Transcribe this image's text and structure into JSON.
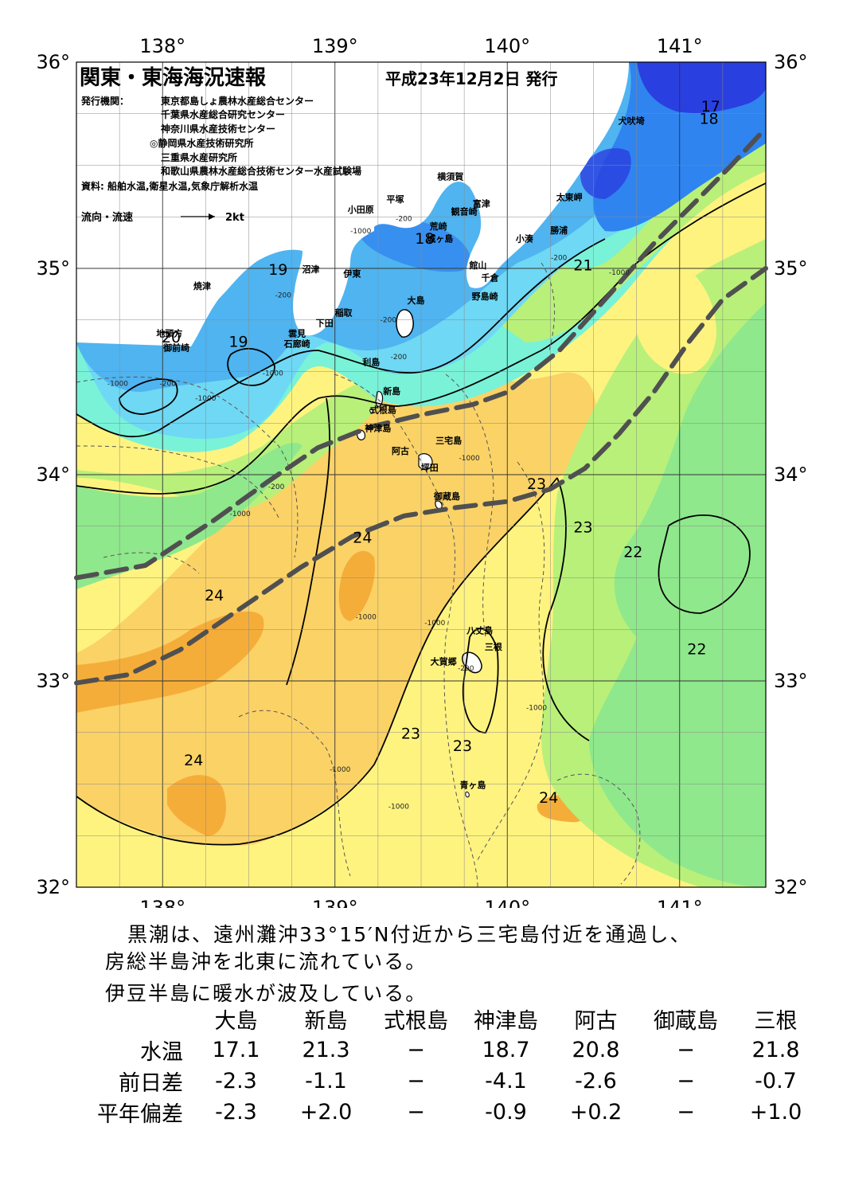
{
  "header": {
    "title": "関東・東海海況速報",
    "date": "平成23年12月2日 発行",
    "issuer_label": "発行機関：",
    "issuers": [
      "東京都島しょ農林水産総合センター",
      "千葉県水産総合研究センター",
      "神奈川県水産技術センター",
      "◎静岡県水産技術研究所",
      "三重県水産研究所",
      "和歌山県農林水産総合技術センター水産試験場"
    ],
    "source": "資料: 船舶水温,衛星水温,気象庁解析水温",
    "legend_label": "流向・流速",
    "legend_scale": "2kt"
  },
  "axes": {
    "lon_labels": [
      "138°",
      "139°",
      "140°",
      "141°"
    ],
    "lat_labels": [
      "36°",
      "35°",
      "34°",
      "33°",
      "32°"
    ],
    "lon_values": [
      138,
      139,
      140,
      141
    ],
    "lat_values": [
      36,
      35,
      34,
      33,
      32
    ],
    "lon_range": [
      137.5,
      141.5
    ],
    "lat_range": [
      32,
      36
    ]
  },
  "colors": {
    "t17": "#2a3fe0",
    "t18": "#2f84f0",
    "t19": "#4fb4f0",
    "t20": "#6fd8f4",
    "t21": "#79f2d8",
    "t22": "#8fe88c",
    "t22b": "#b8f07a",
    "t23": "#fff380",
    "t23b": "#fbd266",
    "t24": "#f5ad3a",
    "land": "#ffffff",
    "kuroshio": "#505050"
  },
  "place_names": [
    {
      "name": "犬吠埼",
      "lon": 140.72,
      "lat": 35.7
    },
    {
      "name": "太東岬",
      "lon": 140.36,
      "lat": 35.33
    },
    {
      "name": "勝浦",
      "lon": 140.3,
      "lat": 35.17
    },
    {
      "name": "小湊",
      "lon": 140.1,
      "lat": 35.13
    },
    {
      "name": "富津",
      "lon": 139.85,
      "lat": 35.3
    },
    {
      "name": "館山",
      "lon": 139.83,
      "lat": 35.0
    },
    {
      "name": "千倉",
      "lon": 139.9,
      "lat": 34.94
    },
    {
      "name": "野島崎",
      "lon": 139.87,
      "lat": 34.85
    },
    {
      "name": "横須賀",
      "lon": 139.67,
      "lat": 35.43
    },
    {
      "name": "観音崎",
      "lon": 139.75,
      "lat": 35.26
    },
    {
      "name": "荒崎",
      "lon": 139.6,
      "lat": 35.19
    },
    {
      "name": "城ヶ島",
      "lon": 139.61,
      "lat": 35.13
    },
    {
      "name": "平塚",
      "lon": 139.35,
      "lat": 35.32
    },
    {
      "name": "小田原",
      "lon": 139.15,
      "lat": 35.27
    },
    {
      "name": "沼津",
      "lon": 138.86,
      "lat": 34.98
    },
    {
      "name": "伊東",
      "lon": 139.1,
      "lat": 34.96
    },
    {
      "name": "焼津",
      "lon": 138.23,
      "lat": 34.9
    },
    {
      "name": "稲取",
      "lon": 139.05,
      "lat": 34.77
    },
    {
      "name": "下田",
      "lon": 138.94,
      "lat": 34.72
    },
    {
      "name": "雲見",
      "lon": 138.78,
      "lat": 34.67
    },
    {
      "name": "石廊崎",
      "lon": 138.78,
      "lat": 34.62
    },
    {
      "name": "地頭方",
      "lon": 138.04,
      "lat": 34.67
    },
    {
      "name": "御前崎",
      "lon": 138.08,
      "lat": 34.6
    },
    {
      "name": "大島",
      "lon": 139.47,
      "lat": 34.83
    },
    {
      "name": "利島",
      "lon": 139.21,
      "lat": 34.53
    },
    {
      "name": "新島",
      "lon": 139.33,
      "lat": 34.39
    },
    {
      "name": "式根島",
      "lon": 139.28,
      "lat": 34.3
    },
    {
      "name": "神津島",
      "lon": 139.25,
      "lat": 34.21
    },
    {
      "name": "三宅島",
      "lon": 139.66,
      "lat": 34.15
    },
    {
      "name": "阿古",
      "lon": 139.38,
      "lat": 34.1
    },
    {
      "name": "坪田",
      "lon": 139.55,
      "lat": 34.02
    },
    {
      "name": "御蔵島",
      "lon": 139.65,
      "lat": 33.88
    },
    {
      "name": "八丈島",
      "lon": 139.84,
      "lat": 33.23
    },
    {
      "name": "三根",
      "lon": 139.92,
      "lat": 33.15
    },
    {
      "name": "大賀郷",
      "lon": 139.63,
      "lat": 33.08
    },
    {
      "name": "青ヶ島",
      "lon": 139.8,
      "lat": 32.48
    }
  ],
  "isotherm_labels": [
    {
      "t": "17",
      "lon": 141.18,
      "lat": 35.76
    },
    {
      "t": "18",
      "lon": 141.17,
      "lat": 35.7
    },
    {
      "t": "18",
      "lon": 139.52,
      "lat": 35.12
    },
    {
      "t": "19",
      "lon": 138.67,
      "lat": 34.97
    },
    {
      "t": "19",
      "lon": 138.44,
      "lat": 34.62
    },
    {
      "t": "20",
      "lon": 138.05,
      "lat": 34.64
    },
    {
      "t": "21",
      "lon": 140.44,
      "lat": 34.99
    },
    {
      "t": "23",
      "lon": 140.17,
      "lat": 33.93
    },
    {
      "t": "23",
      "lon": 140.44,
      "lat": 33.72
    },
    {
      "t": "22",
      "lon": 140.73,
      "lat": 33.6
    },
    {
      "t": "24",
      "lon": 139.16,
      "lat": 33.67
    },
    {
      "t": "24",
      "lon": 138.3,
      "lat": 33.39
    },
    {
      "t": "22",
      "lon": 141.1,
      "lat": 33.13
    },
    {
      "t": "23",
      "lon": 139.44,
      "lat": 32.72
    },
    {
      "t": "23",
      "lon": 139.74,
      "lat": 32.66
    },
    {
      "t": "24",
      "lon": 138.18,
      "lat": 32.59
    },
    {
      "t": "24",
      "lon": 140.24,
      "lat": 32.41
    }
  ],
  "depth_labels": [
    {
      "t": "-200",
      "lon": 139.4,
      "lat": 35.23
    },
    {
      "t": "-1000",
      "lon": 139.15,
      "lat": 35.17
    },
    {
      "t": "-200",
      "lon": 140.3,
      "lat": 35.04
    },
    {
      "t": "-1000",
      "lon": 140.65,
      "lat": 34.97
    },
    {
      "t": "-200",
      "lon": 138.7,
      "lat": 34.86
    },
    {
      "t": "-200",
      "lon": 139.31,
      "lat": 34.74
    },
    {
      "t": "-200",
      "lon": 139.37,
      "lat": 34.56
    },
    {
      "t": "-1000",
      "lon": 137.74,
      "lat": 34.43
    },
    {
      "t": "-200",
      "lon": 138.03,
      "lat": 34.43
    },
    {
      "t": "-1000",
      "lon": 138.25,
      "lat": 34.36
    },
    {
      "t": "-1000",
      "lon": 138.64,
      "lat": 34.48
    },
    {
      "t": "-200",
      "lon": 138.66,
      "lat": 33.93
    },
    {
      "t": "-1000",
      "lon": 138.45,
      "lat": 33.8
    },
    {
      "t": "-1000",
      "lon": 139.78,
      "lat": 34.07
    },
    {
      "t": "-1000",
      "lon": 139.18,
      "lat": 33.3
    },
    {
      "t": "-1000",
      "lon": 139.58,
      "lat": 33.27
    },
    {
      "t": "-200",
      "lon": 139.76,
      "lat": 33.05
    },
    {
      "t": "-1000",
      "lon": 140.17,
      "lat": 32.86
    },
    {
      "t": "-1000",
      "lon": 139.03,
      "lat": 32.56
    },
    {
      "t": "-1000",
      "lon": 139.37,
      "lat": 32.38
    }
  ],
  "kuroshio_paths": [
    [
      [
        137.5,
        33.5
      ],
      [
        137.9,
        33.56
      ],
      [
        138.3,
        33.78
      ],
      [
        138.6,
        33.96
      ],
      [
        138.9,
        34.13
      ],
      [
        139.2,
        34.23
      ],
      [
        139.5,
        34.29
      ],
      [
        139.8,
        34.34
      ],
      [
        140.0,
        34.4
      ],
      [
        140.3,
        34.6
      ],
      [
        140.6,
        34.88
      ],
      [
        140.85,
        35.12
      ],
      [
        141.1,
        35.33
      ],
      [
        141.3,
        35.5
      ],
      [
        141.5,
        35.68
      ]
    ],
    [
      [
        137.5,
        32.99
      ],
      [
        137.8,
        33.03
      ],
      [
        138.1,
        33.15
      ],
      [
        138.45,
        33.35
      ],
      [
        138.8,
        33.55
      ],
      [
        139.1,
        33.7
      ],
      [
        139.4,
        33.8
      ],
      [
        139.7,
        33.84
      ],
      [
        140.0,
        33.87
      ],
      [
        140.25,
        33.93
      ],
      [
        140.45,
        34.03
      ],
      [
        140.65,
        34.2
      ],
      [
        140.85,
        34.4
      ],
      [
        141.05,
        34.64
      ],
      [
        141.25,
        34.85
      ],
      [
        141.5,
        35.0
      ]
    ]
  ],
  "summary": {
    "line1": "黒潮は、遠州灘沖33°15′N付近から三宅島付近を通過し、",
    "line2": "房総半島沖を北東に流れている。",
    "line3": "伊豆半島に暖水が波及している。"
  },
  "observations": {
    "stations": [
      "大島",
      "新島",
      "式根島",
      "神津島",
      "阿古",
      "御蔵島",
      "三根"
    ],
    "rows": [
      {
        "label": "水温",
        "values": [
          "17.1",
          "21.3",
          "−",
          "18.7",
          "20.8",
          "−",
          "21.8"
        ]
      },
      {
        "label": "前日差",
        "values": [
          "-2.3",
          "-1.1",
          "−",
          "-4.1",
          "-2.6",
          "−",
          "-0.7"
        ]
      },
      {
        "label": "平年偏差",
        "values": [
          "-2.3",
          "+2.0",
          "−",
          "-0.9",
          "+0.2",
          "−",
          "+1.0"
        ]
      }
    ]
  }
}
